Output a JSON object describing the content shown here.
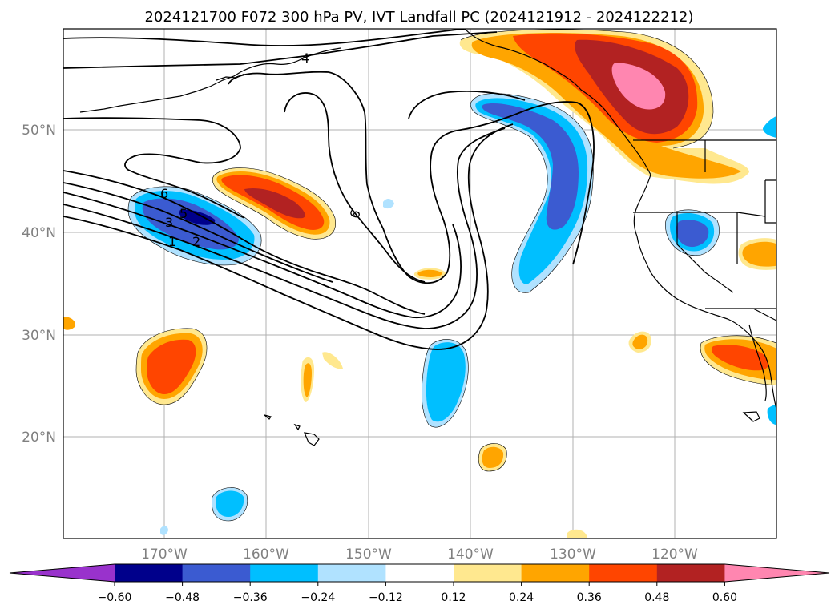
{
  "title": "2024121700 F072 300 hPa PV, IVT Landfall PC (2024121912 - 2024122212)",
  "lat_labels": [
    "50°N",
    "40°N",
    "30°N",
    "20°N"
  ],
  "lon_labels": [
    "170°W",
    "160°W",
    "150°W",
    "140°W",
    "130°W",
    "120°W"
  ],
  "colorbar": {
    "ticks": [
      "−0.60",
      "−0.48",
      "−0.36",
      "−0.24",
      "−0.12",
      "0.12",
      "0.24",
      "0.36",
      "0.48",
      "0.60"
    ],
    "colors": [
      "#9932cc",
      "#00008b",
      "#3b5bd1",
      "#00bfff",
      "#b0e2ff",
      "#ffffff",
      "#ffe88f",
      "#ffa500",
      "#ff4500",
      "#b22222",
      "#ff86b0"
    ]
  },
  "contour_labels": [
    "1",
    "2",
    "3",
    "5",
    "6",
    "6",
    "4"
  ]
}
